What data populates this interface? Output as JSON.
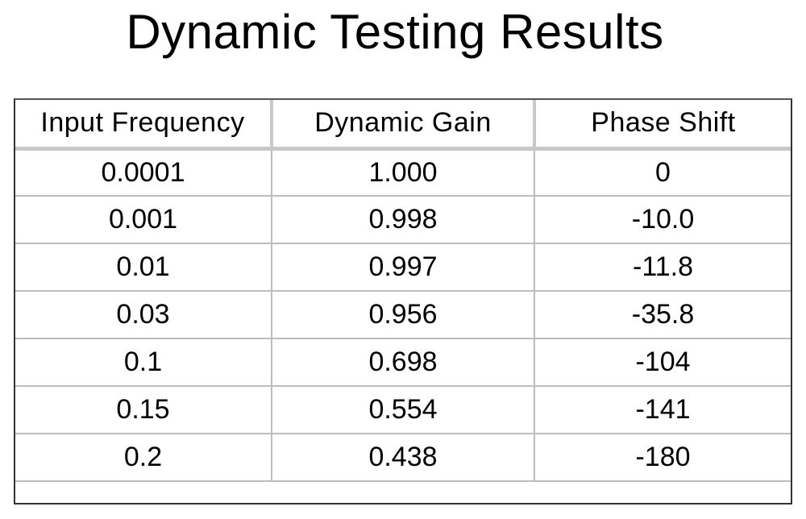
{
  "title": "Dynamic Testing Results",
  "table": {
    "headers": [
      "Input Frequency",
      "Dynamic Gain",
      "Phase Shift"
    ],
    "rows": [
      [
        "0.0001",
        "1.000",
        "0"
      ],
      [
        "0.001",
        "0.998",
        "-10.0"
      ],
      [
        "0.01",
        "0.997",
        "-11.8"
      ],
      [
        "0.03",
        "0.956",
        "-35.8"
      ],
      [
        "0.1",
        "0.698",
        "-104"
      ],
      [
        "0.15",
        "0.554",
        "-141"
      ],
      [
        "0.2",
        "0.438",
        "-180"
      ]
    ]
  }
}
